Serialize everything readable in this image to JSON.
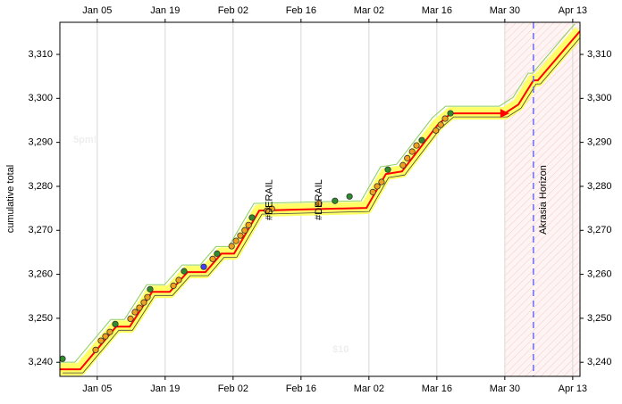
{
  "chart_data": {
    "type": "scatter",
    "y_label": "cumulative total",
    "watermarks": [
      "5pm!",
      "$10"
    ],
    "xlim": [
      -3.7,
      103.5
    ],
    "ylim": [
      3236.8,
      3317.3
    ],
    "xticks": [
      {
        "value": 4,
        "label": "Jan 05"
      },
      {
        "value": 18,
        "label": "Jan 19"
      },
      {
        "value": 32,
        "label": "Feb 02"
      },
      {
        "value": 46,
        "label": "Feb 16"
      },
      {
        "value": 60,
        "label": "Mar 02"
      },
      {
        "value": 74,
        "label": "Mar 16"
      },
      {
        "value": 88,
        "label": "Mar 30"
      },
      {
        "value": 102,
        "label": "Apr 13"
      }
    ],
    "yticks": [
      {
        "value": 3240,
        "label": "3,240"
      },
      {
        "value": 3250,
        "label": "3,250"
      },
      {
        "value": 3260,
        "label": "3,260"
      },
      {
        "value": 3270,
        "label": "3,270"
      },
      {
        "value": 3280,
        "label": "3,280"
      },
      {
        "value": 3290,
        "label": "3,290"
      },
      {
        "value": 3300,
        "label": "3,300"
      },
      {
        "value": 3310,
        "label": "3,310"
      }
    ],
    "grid": true,
    "today": 88,
    "horizon": {
      "label": "Akrasia Horizon",
      "x": 93.9,
      "color": "#6a6aff"
    },
    "annotations": [
      {
        "label": "#DERAIL",
        "x": 39.5
      },
      {
        "label": "#DERAIL",
        "x": 49.7
      }
    ],
    "series": [
      {
        "type": "line",
        "color": "#ff0000",
        "x": [
          -3.7,
          0.5,
          7.9,
          10.7,
          15.3,
          18.95,
          22.6,
          26.3,
          29.6,
          32.2,
          37.4,
          59.5,
          63.5,
          66.8,
          74.2,
          76.9,
          88.0,
          90.8,
          93.9,
          94.8,
          103.5
        ],
        "values": [
          3238.4,
          3238.4,
          3248.1,
          3248.1,
          3256.0,
          3256.0,
          3260.5,
          3260.5,
          3264.7,
          3264.7,
          3274.5,
          3275.1,
          3282.8,
          3283.4,
          3294.0,
          3296.6,
          3296.6,
          3298.6,
          3304.1,
          3304.1,
          3315.3
        ]
      },
      {
        "type": "scatter",
        "color": "#f0a020",
        "x": [
          3.67,
          4.77,
          5.69,
          6.61,
          10.85,
          11.77,
          12.69,
          13.61,
          14.35,
          19.7,
          20.8,
          27.8,
          31.7,
          32.6,
          33.5,
          34.4,
          35.2,
          39.0,
          40.0,
          49.7,
          60.8,
          61.7,
          62.6,
          67.0,
          67.9,
          68.9,
          69.8,
          73.8,
          74.8,
          75.7
        ],
        "values": [
          3242.8,
          3244.9,
          3245.9,
          3246.9,
          3249.9,
          3251.4,
          3252.4,
          3253.6,
          3254.8,
          3257.4,
          3258.7,
          3263.5,
          3266.4,
          3267.6,
          3268.8,
          3270.0,
          3271.2,
          3274.5,
          3274.9,
          3276.1,
          3278.7,
          3280.0,
          3281.0,
          3284.8,
          3286.4,
          3287.9,
          3289.3,
          3292.7,
          3294.0,
          3295.4
        ]
      },
      {
        "type": "scatter",
        "color": "#2e8b2e",
        "x": [
          -3.15,
          7.72,
          14.9,
          21.9,
          28.7,
          35.9,
          53.0,
          56.0,
          63.9,
          70.9,
          76.8
        ],
        "values": [
          3240.8,
          3248.7,
          3256.6,
          3260.7,
          3264.7,
          3272.9,
          3276.7,
          3277.7,
          3283.8,
          3290.5,
          3296.6
        ]
      },
      {
        "type": "scatter",
        "color": "#4040ff",
        "x": [
          25.95
        ],
        "values": [
          3261.7
        ]
      }
    ]
  }
}
